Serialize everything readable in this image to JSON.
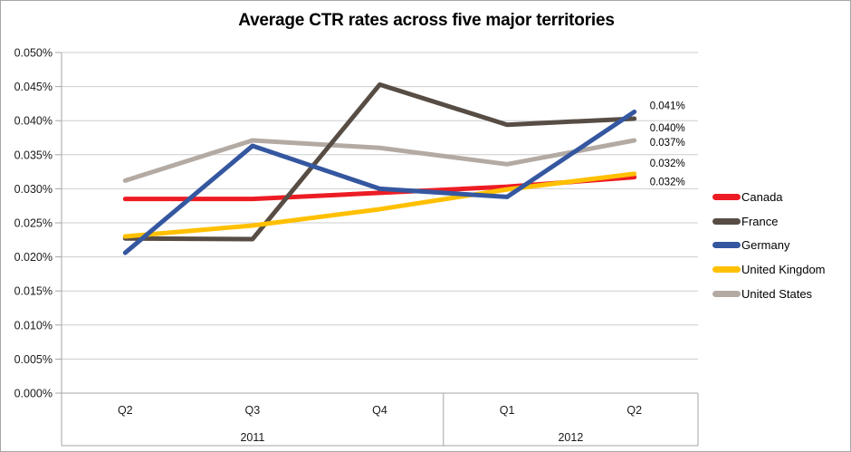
{
  "title": "Average CTR rates across five major territories",
  "chart_data": {
    "type": "line",
    "title": "Average CTR rates across five major territories",
    "x_categories": [
      "Q2",
      "Q3",
      "Q4",
      "Q1",
      "Q2"
    ],
    "x_groups": [
      {
        "label": "2011",
        "start": 0,
        "end": 2
      },
      {
        "label": "2012",
        "start": 3,
        "end": 4
      }
    ],
    "y_axis": {
      "min": 0,
      "max": 0.05,
      "step": 0.005,
      "decimals": 3,
      "suffix": "%"
    },
    "grid": true,
    "legend_position": "right",
    "series": [
      {
        "name": "Canada",
        "color": "#ed1c24",
        "values": [
          0.0285,
          0.0285,
          0.0294,
          0.0303,
          0.0317
        ],
        "end_label": "0.032%"
      },
      {
        "name": "France",
        "color": "#574d45",
        "values": [
          0.0227,
          0.0226,
          0.0453,
          0.0394,
          0.0403
        ],
        "end_label": "0.040%"
      },
      {
        "name": "Germany",
        "color": "#3557a0",
        "values": [
          0.0206,
          0.0363,
          0.03,
          0.0288,
          0.0413
        ],
        "end_label": "0.041%"
      },
      {
        "name": "United Kingdom",
        "color": "#ffc000",
        "values": [
          0.023,
          0.0246,
          0.027,
          0.0299,
          0.0322
        ],
        "end_label": "0.032%"
      },
      {
        "name": "United States",
        "color": "#b3aaa3",
        "values": [
          0.0312,
          0.0371,
          0.036,
          0.0336,
          0.0371
        ],
        "end_label": "0.037%"
      }
    ],
    "colors": {
      "gridline": "#cfcdcd",
      "axis": "#a6a6a6",
      "text": "#1a1a1a"
    }
  }
}
